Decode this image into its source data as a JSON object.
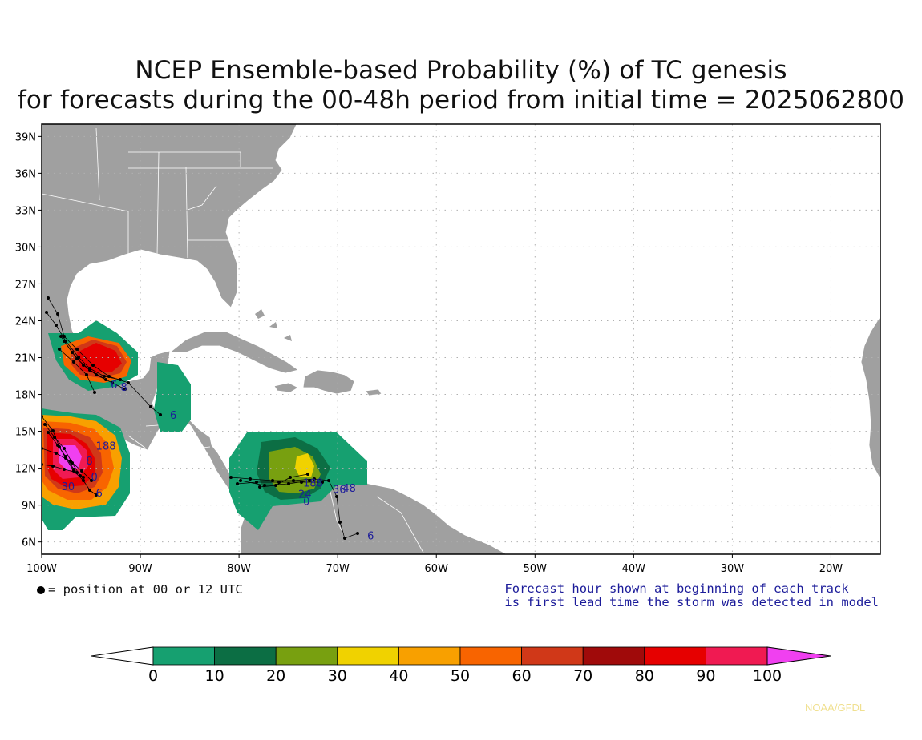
{
  "title": {
    "line1": "NCEP Ensemble-based Probability (%) of TC genesis",
    "line2": "for forecasts during the 00-48h period from initial time = 2025062800"
  },
  "map": {
    "lon_range": [
      -100,
      -15
    ],
    "lat_range": [
      5,
      40
    ],
    "lon_ticks": [
      {
        "lon": -100,
        "label": "100W"
      },
      {
        "lon": -90,
        "label": "90W"
      },
      {
        "lon": -80,
        "label": "80W"
      },
      {
        "lon": -70,
        "label": "70W"
      },
      {
        "lon": -60,
        "label": "60W"
      },
      {
        "lon": -50,
        "label": "50W"
      },
      {
        "lon": -40,
        "label": "40W"
      },
      {
        "lon": -30,
        "label": "30W"
      },
      {
        "lon": -20,
        "label": "20W"
      }
    ],
    "lat_ticks": [
      {
        "lat": 6,
        "label": "6N"
      },
      {
        "lat": 9,
        "label": "9N"
      },
      {
        "lat": 12,
        "label": "12N"
      },
      {
        "lat": 15,
        "label": "15N"
      },
      {
        "lat": 18,
        "label": "18N"
      },
      {
        "lat": 21,
        "label": "21N"
      },
      {
        "lat": 24,
        "label": "24N"
      },
      {
        "lat": 27,
        "label": "27N"
      },
      {
        "lat": 30,
        "label": "30N"
      },
      {
        "lat": 33,
        "label": "33N"
      },
      {
        "lat": 36,
        "label": "36N"
      },
      {
        "lat": 39,
        "label": "39N"
      }
    ],
    "grid": true,
    "colors": {
      "land": "#a0a0a0",
      "ocean": "#ffffff",
      "border": "#ffffff",
      "track": "#000000",
      "hour_label": "#1c1c9a"
    }
  },
  "legend_left": {
    "text": "= position at 00 or 12 UTC"
  },
  "legend_right": {
    "line1": "Forecast hour shown at beginning of each track",
    "line2": "is first lead time the storm was detected in model"
  },
  "colorbar": {
    "ticks": [
      "0",
      "10",
      "20",
      "30",
      "40",
      "50",
      "60",
      "70",
      "80",
      "90",
      "100"
    ],
    "colors": [
      "#16a070",
      "#0c6e44",
      "#78a010",
      "#f0d200",
      "#f8a000",
      "#f86400",
      "#d03818",
      "#a00a0a",
      "#e60000",
      "#f01a52"
    ],
    "low_arrow_color": "#ffffff",
    "high_arrow_color": "#f040f0"
  },
  "hour_labels": [
    {
      "text": "6",
      "lon": -87,
      "lat": 16
    },
    {
      "text": "6",
      "lon": -93,
      "lat": 18.5
    },
    {
      "text": "8",
      "lon": -92,
      "lat": 18.3
    },
    {
      "text": "188",
      "lon": -94.5,
      "lat": 13.5
    },
    {
      "text": "30",
      "lon": -98,
      "lat": 10.2
    },
    {
      "text": "8",
      "lon": -95.5,
      "lat": 12.3
    },
    {
      "text": "0",
      "lon": -95,
      "lat": 11
    },
    {
      "text": "6",
      "lon": -94.5,
      "lat": 9.7
    },
    {
      "text": "188",
      "lon": -73.5,
      "lat": 10.5
    },
    {
      "text": "24",
      "lon": -74,
      "lat": 9.6
    },
    {
      "text": "0",
      "lon": -73.5,
      "lat": 9.0
    },
    {
      "text": "36",
      "lon": -70.5,
      "lat": 10.0
    },
    {
      "text": "48",
      "lon": -69.5,
      "lat": 10.1
    },
    {
      "text": "6",
      "lon": -67,
      "lat": 6.2
    }
  ],
  "credit": "NOAA/GFDL"
}
